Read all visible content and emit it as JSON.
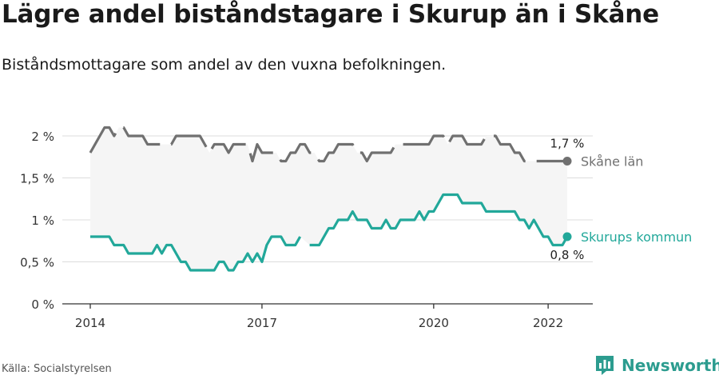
{
  "header": {
    "title": "Lägre andel biståndstagare i Skurup än i Skåne",
    "subtitle": "Biståndsmottagare som andel av den vuxna befolkningen."
  },
  "footer": {
    "source": "Källa: Socialstyrelsen",
    "brand": "Newsworthy",
    "brand_icon": "newsworthy-logo-icon"
  },
  "colors": {
    "skane": "#707070",
    "skurup": "#22a89a",
    "band": "#f5f5f5",
    "grid": "#dcdcdc",
    "brand": "#2c9c8f"
  },
  "chart_data": {
    "type": "line",
    "title": "Lägre andel biståndstagare i Skurup än i Skåne",
    "subtitle": "Biståndsmottagare som andel av den vuxna befolkningen.",
    "x_unit": "month",
    "x_range": [
      "2014-01",
      "2022-05"
    ],
    "ylim": [
      0,
      2
    ],
    "y_ticks": [
      0,
      0.5,
      1,
      1.5,
      2
    ],
    "y_tick_labels": [
      "0 %",
      "0,5 %",
      "1 %",
      "1,5 %",
      "2 %"
    ],
    "x_ticks": [
      "2014-01",
      "2017-01",
      "2020-01",
      "2022-01"
    ],
    "x_tick_labels": [
      "2014",
      "2017",
      "2020",
      "2022"
    ],
    "grid": true,
    "shaded_band_between_series": true,
    "series": [
      {
        "name": "Skåne län",
        "style": "dashed",
        "end_label": "1,7 %",
        "points": [
          [
            "2014-01",
            1.8
          ],
          [
            "2014-02",
            1.9
          ],
          [
            "2014-03",
            2.0
          ],
          [
            "2014-04",
            2.1
          ],
          [
            "2014-05",
            2.1
          ],
          [
            "2014-06",
            2.0
          ],
          [
            "2014-07",
            2.1
          ],
          [
            "2014-08",
            2.1
          ],
          [
            "2014-09",
            2.0
          ],
          [
            "2014-10",
            2.0
          ],
          [
            "2014-11",
            2.0
          ],
          [
            "2014-12",
            2.0
          ],
          [
            "2015-01",
            1.9
          ],
          [
            "2015-02",
            1.9
          ],
          [
            "2015-03",
            1.9
          ],
          [
            "2015-04",
            1.9
          ],
          [
            "2015-05",
            1.9
          ],
          [
            "2015-06",
            1.9
          ],
          [
            "2015-07",
            2.0
          ],
          [
            "2015-08",
            2.0
          ],
          [
            "2015-09",
            2.0
          ],
          [
            "2015-10",
            2.0
          ],
          [
            "2015-11",
            2.0
          ],
          [
            "2015-12",
            2.0
          ],
          [
            "2016-01",
            1.9
          ],
          [
            "2016-02",
            1.8
          ],
          [
            "2016-03",
            1.9
          ],
          [
            "2016-04",
            1.9
          ],
          [
            "2016-05",
            1.9
          ],
          [
            "2016-06",
            1.8
          ],
          [
            "2016-07",
            1.9
          ],
          [
            "2016-08",
            1.9
          ],
          [
            "2016-09",
            1.9
          ],
          [
            "2016-10",
            1.9
          ],
          [
            "2016-11",
            1.7
          ],
          [
            "2016-12",
            1.9
          ],
          [
            "2017-01",
            1.8
          ],
          [
            "2017-02",
            1.8
          ],
          [
            "2017-03",
            1.8
          ],
          [
            "2017-04",
            1.8
          ],
          [
            "2017-05",
            1.7
          ],
          [
            "2017-06",
            1.7
          ],
          [
            "2017-07",
            1.8
          ],
          [
            "2017-08",
            1.8
          ],
          [
            "2017-09",
            1.9
          ],
          [
            "2017-10",
            1.9
          ],
          [
            "2017-11",
            1.8
          ],
          [
            "2017-12",
            1.8
          ],
          [
            "2018-01",
            1.7
          ],
          [
            "2018-02",
            1.7
          ],
          [
            "2018-03",
            1.8
          ],
          [
            "2018-04",
            1.8
          ],
          [
            "2018-05",
            1.9
          ],
          [
            "2018-06",
            1.9
          ],
          [
            "2018-07",
            1.9
          ],
          [
            "2018-08",
            1.9
          ],
          [
            "2018-09",
            1.8
          ],
          [
            "2018-10",
            1.8
          ],
          [
            "2018-11",
            1.7
          ],
          [
            "2018-12",
            1.8
          ],
          [
            "2019-01",
            1.8
          ],
          [
            "2019-02",
            1.8
          ],
          [
            "2019-03",
            1.8
          ],
          [
            "2019-04",
            1.8
          ],
          [
            "2019-05",
            1.9
          ],
          [
            "2019-06",
            1.9
          ],
          [
            "2019-07",
            1.9
          ],
          [
            "2019-08",
            1.9
          ],
          [
            "2019-09",
            1.9
          ],
          [
            "2019-10",
            1.9
          ],
          [
            "2019-11",
            1.9
          ],
          [
            "2019-12",
            1.9
          ],
          [
            "2020-01",
            2.0
          ],
          [
            "2020-02",
            2.0
          ],
          [
            "2020-03",
            2.0
          ],
          [
            "2020-04",
            1.9
          ],
          [
            "2020-05",
            2.0
          ],
          [
            "2020-06",
            2.0
          ],
          [
            "2020-07",
            2.0
          ],
          [
            "2020-08",
            1.9
          ],
          [
            "2020-09",
            1.9
          ],
          [
            "2020-10",
            1.9
          ],
          [
            "2020-11",
            1.9
          ],
          [
            "2020-12",
            2.0
          ],
          [
            "2021-01",
            2.0
          ],
          [
            "2021-02",
            2.0
          ],
          [
            "2021-03",
            1.9
          ],
          [
            "2021-04",
            1.9
          ],
          [
            "2021-05",
            1.9
          ],
          [
            "2021-06",
            1.8
          ],
          [
            "2021-07",
            1.8
          ],
          [
            "2021-08",
            1.7
          ],
          [
            "2021-09",
            1.7
          ],
          [
            "2021-10",
            1.7
          ],
          [
            "2021-11",
            1.7
          ],
          [
            "2021-12",
            1.7
          ],
          [
            "2022-01",
            1.7
          ],
          [
            "2022-02",
            1.7
          ],
          [
            "2022-03",
            1.7
          ],
          [
            "2022-04",
            1.7
          ],
          [
            "2022-05",
            1.7
          ]
        ]
      },
      {
        "name": "Skurups kommun",
        "style": "solid",
        "end_label": "0,8 %",
        "points": [
          [
            "2014-01",
            0.8
          ],
          [
            "2014-02",
            0.8
          ],
          [
            "2014-03",
            0.8
          ],
          [
            "2014-04",
            0.8
          ],
          [
            "2014-05",
            0.8
          ],
          [
            "2014-06",
            0.7
          ],
          [
            "2014-07",
            0.7
          ],
          [
            "2014-08",
            0.7
          ],
          [
            "2014-09",
            0.6
          ],
          [
            "2014-10",
            0.6
          ],
          [
            "2014-11",
            0.6
          ],
          [
            "2014-12",
            0.6
          ],
          [
            "2015-01",
            0.6
          ],
          [
            "2015-02",
            0.6
          ],
          [
            "2015-03",
            0.7
          ],
          [
            "2015-04",
            0.6
          ],
          [
            "2015-05",
            0.7
          ],
          [
            "2015-06",
            0.7
          ],
          [
            "2015-07",
            0.6
          ],
          [
            "2015-08",
            0.5
          ],
          [
            "2015-09",
            0.5
          ],
          [
            "2015-10",
            0.4
          ],
          [
            "2015-11",
            0.4
          ],
          [
            "2015-12",
            0.4
          ],
          [
            "2016-01",
            0.4
          ],
          [
            "2016-02",
            0.4
          ],
          [
            "2016-03",
            0.4
          ],
          [
            "2016-04",
            0.5
          ],
          [
            "2016-05",
            0.5
          ],
          [
            "2016-06",
            0.4
          ],
          [
            "2016-07",
            0.4
          ],
          [
            "2016-08",
            0.5
          ],
          [
            "2016-09",
            0.5
          ],
          [
            "2016-10",
            0.6
          ],
          [
            "2016-11",
            0.5
          ],
          [
            "2016-12",
            0.6
          ],
          [
            "2017-01",
            0.5
          ],
          [
            "2017-02",
            0.7
          ],
          [
            "2017-03",
            0.8
          ],
          [
            "2017-04",
            0.8
          ],
          [
            "2017-05",
            0.8
          ],
          [
            "2017-06",
            0.7
          ],
          [
            "2017-07",
            0.7
          ],
          [
            "2017-08",
            0.7
          ],
          [
            "2017-09",
            0.8
          ],
          [
            "2017-10",
            null
          ],
          [
            "2017-11",
            0.7
          ],
          [
            "2017-12",
            0.7
          ],
          [
            "2018-01",
            0.7
          ],
          [
            "2018-02",
            0.8
          ],
          [
            "2018-03",
            0.9
          ],
          [
            "2018-04",
            0.9
          ],
          [
            "2018-05",
            1.0
          ],
          [
            "2018-06",
            1.0
          ],
          [
            "2018-07",
            1.0
          ],
          [
            "2018-08",
            1.1
          ],
          [
            "2018-09",
            1.0
          ],
          [
            "2018-10",
            1.0
          ],
          [
            "2018-11",
            1.0
          ],
          [
            "2018-12",
            0.9
          ],
          [
            "2019-01",
            0.9
          ],
          [
            "2019-02",
            0.9
          ],
          [
            "2019-03",
            1.0
          ],
          [
            "2019-04",
            0.9
          ],
          [
            "2019-05",
            0.9
          ],
          [
            "2019-06",
            1.0
          ],
          [
            "2019-07",
            1.0
          ],
          [
            "2019-08",
            1.0
          ],
          [
            "2019-09",
            1.0
          ],
          [
            "2019-10",
            1.1
          ],
          [
            "2019-11",
            1.0
          ],
          [
            "2019-12",
            1.1
          ],
          [
            "2020-01",
            1.1
          ],
          [
            "2020-02",
            1.2
          ],
          [
            "2020-03",
            1.3
          ],
          [
            "2020-04",
            1.3
          ],
          [
            "2020-05",
            1.3
          ],
          [
            "2020-06",
            1.3
          ],
          [
            "2020-07",
            1.2
          ],
          [
            "2020-08",
            1.2
          ],
          [
            "2020-09",
            1.2
          ],
          [
            "2020-10",
            1.2
          ],
          [
            "2020-11",
            1.2
          ],
          [
            "2020-12",
            1.1
          ],
          [
            "2021-01",
            1.1
          ],
          [
            "2021-02",
            1.1
          ],
          [
            "2021-03",
            1.1
          ],
          [
            "2021-04",
            1.1
          ],
          [
            "2021-05",
            1.1
          ],
          [
            "2021-06",
            1.1
          ],
          [
            "2021-07",
            1.0
          ],
          [
            "2021-08",
            1.0
          ],
          [
            "2021-09",
            0.9
          ],
          [
            "2021-10",
            1.0
          ],
          [
            "2021-11",
            0.9
          ],
          [
            "2021-12",
            0.8
          ],
          [
            "2022-01",
            0.8
          ],
          [
            "2022-02",
            0.7
          ],
          [
            "2022-03",
            0.7
          ],
          [
            "2022-04",
            0.7
          ],
          [
            "2022-05",
            0.8
          ]
        ]
      }
    ]
  }
}
